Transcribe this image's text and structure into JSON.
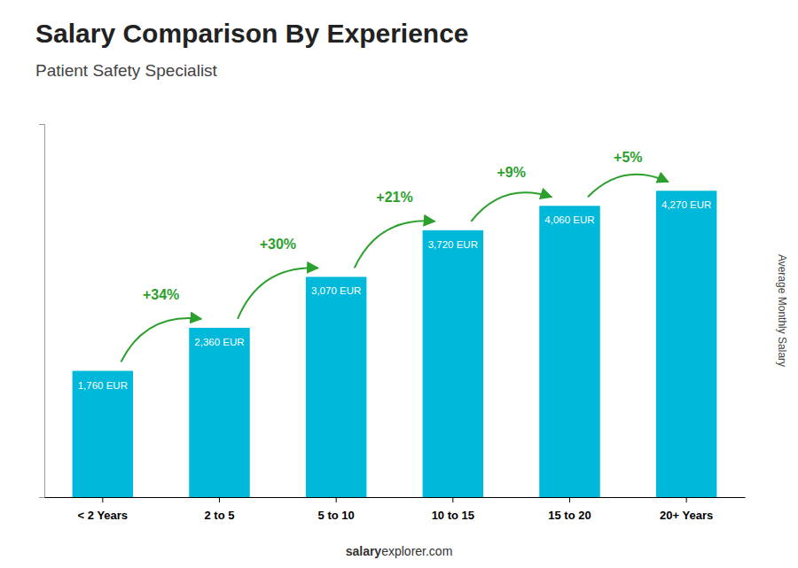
{
  "chart_data": {
    "type": "bar",
    "title": "Salary Comparison By Experience",
    "subtitle": "Patient Safety Specialist",
    "categories": [
      "< 2 Years",
      "2 to 5",
      "5 to 10",
      "10 to 15",
      "15 to 20",
      "20+ Years"
    ],
    "values": [
      1760,
      2360,
      3070,
      3720,
      4060,
      4270
    ],
    "value_labels": [
      "1,760 EUR",
      "2,360 EUR",
      "3,070 EUR",
      "3,720 EUR",
      "4,060 EUR",
      "4,270 EUR"
    ],
    "annotations": [
      "+34%",
      "+30%",
      "+21%",
      "+9%",
      "+5%"
    ],
    "y_label": "Average Monthly Salary",
    "footer": [
      "salary",
      "explorer.com"
    ],
    "color": "#00b8d9",
    "ylim": [
      0,
      5200
    ],
    "tick_labels": "x"
  }
}
